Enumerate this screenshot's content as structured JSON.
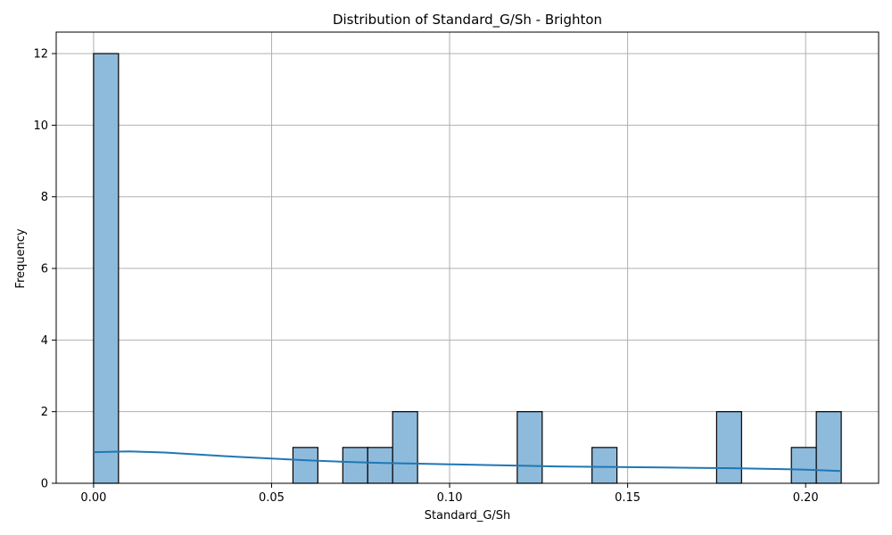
{
  "chart_data": {
    "type": "bar",
    "title": "Distribution of Standard_G/Sh - Brighton",
    "xlabel": "Standard_G/Sh",
    "ylabel": "Frequency",
    "xlim": [
      -0.0105,
      0.2205
    ],
    "ylim": [
      0,
      12.6
    ],
    "xticks": [
      0.0,
      0.05,
      0.1,
      0.15,
      0.2
    ],
    "xtick_labels": [
      "0.00",
      "0.05",
      "0.10",
      "0.15",
      "0.20"
    ],
    "yticks": [
      0,
      2,
      4,
      6,
      8,
      10,
      12
    ],
    "ytick_labels": [
      "0",
      "2",
      "4",
      "6",
      "8",
      "10",
      "12"
    ],
    "grid": true,
    "bin_width": 0.007,
    "bins": [
      {
        "x_start": 0.0,
        "x_end": 0.007,
        "count": 12
      },
      {
        "x_start": 0.056,
        "x_end": 0.063,
        "count": 1
      },
      {
        "x_start": 0.07,
        "x_end": 0.077,
        "count": 1
      },
      {
        "x_start": 0.077,
        "x_end": 0.084,
        "count": 1
      },
      {
        "x_start": 0.084,
        "x_end": 0.091,
        "count": 2
      },
      {
        "x_start": 0.119,
        "x_end": 0.126,
        "count": 2
      },
      {
        "x_start": 0.14,
        "x_end": 0.147,
        "count": 1
      },
      {
        "x_start": 0.175,
        "x_end": 0.182,
        "count": 2
      },
      {
        "x_start": 0.196,
        "x_end": 0.203,
        "count": 1
      },
      {
        "x_start": 0.203,
        "x_end": 0.21,
        "count": 2
      }
    ],
    "kde_curve": {
      "x": [
        0.0,
        0.01,
        0.02,
        0.03,
        0.04,
        0.05,
        0.06,
        0.07,
        0.08,
        0.09,
        0.1,
        0.11,
        0.12,
        0.13,
        0.14,
        0.15,
        0.16,
        0.17,
        0.18,
        0.19,
        0.2,
        0.21
      ],
      "y": [
        0.87,
        0.89,
        0.86,
        0.8,
        0.74,
        0.69,
        0.64,
        0.6,
        0.57,
        0.55,
        0.53,
        0.51,
        0.49,
        0.47,
        0.46,
        0.45,
        0.44,
        0.43,
        0.42,
        0.4,
        0.38,
        0.34
      ]
    },
    "colors": {
      "bar_fill": "#8ebbdc",
      "bar_edge": "#000000",
      "kde_line": "#1f77b4",
      "grid": "#b0b0b0"
    }
  }
}
